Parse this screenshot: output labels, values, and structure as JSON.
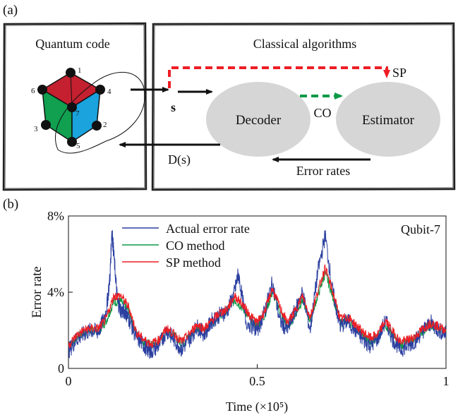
{
  "panel_a": {
    "label": "(a)",
    "quantum_box_title": "Quantum code",
    "classical_box_title": "Classical algorithms",
    "vertex_labels": [
      "1",
      "2",
      "3",
      "4",
      "5",
      "6",
      "7"
    ],
    "syndrome_label": "s",
    "decoder_label": "Decoder",
    "estimator_label": "Estimator",
    "co_label": "CO",
    "sp_label": "SP",
    "decoder_output_label": "D(s)",
    "error_rates_label": "Error rates",
    "colors": {
      "red": "#ee1d24",
      "green": "#0e9a48",
      "blue": "#1c9ad6",
      "ellipse": "#d6d6d6",
      "sp_arrow": "#ee1d24",
      "co_arrow": "#0e9a48"
    }
  },
  "panel_b": {
    "label": "(b)",
    "annotation": "Qubit-7"
  },
  "chart_data": {
    "type": "line",
    "title": "",
    "xlabel": "Time (×10⁵)",
    "ylabel": "Error rate",
    "xlim": [
      0,
      1
    ],
    "ylim": [
      0,
      0.08
    ],
    "x_ticks": [
      "0",
      "0.5",
      "1"
    ],
    "y_ticks": [
      "0",
      "4%",
      "8%"
    ],
    "legend_position": "top-left",
    "series": [
      {
        "name": "Actual error rate",
        "color": "#2b3fa0",
        "x": [
          0,
          0.02,
          0.04,
          0.06,
          0.08,
          0.1,
          0.11,
          0.115,
          0.12,
          0.13,
          0.14,
          0.15,
          0.16,
          0.18,
          0.2,
          0.21,
          0.22,
          0.24,
          0.26,
          0.28,
          0.3,
          0.32,
          0.34,
          0.36,
          0.38,
          0.4,
          0.42,
          0.44,
          0.45,
          0.47,
          0.5,
          0.52,
          0.54,
          0.56,
          0.58,
          0.6,
          0.62,
          0.64,
          0.66,
          0.68,
          0.7,
          0.72,
          0.74,
          0.76,
          0.78,
          0.8,
          0.82,
          0.84,
          0.86,
          0.88,
          0.9,
          0.92,
          0.94,
          0.96,
          0.98,
          1
        ],
        "values": [
          0.009,
          0.015,
          0.018,
          0.02,
          0.019,
          0.03,
          0.048,
          0.073,
          0.06,
          0.035,
          0.03,
          0.03,
          0.026,
          0.016,
          0.012,
          0.01,
          0.009,
          0.012,
          0.02,
          0.015,
          0.01,
          0.015,
          0.022,
          0.018,
          0.025,
          0.028,
          0.03,
          0.04,
          0.05,
          0.025,
          0.02,
          0.03,
          0.045,
          0.025,
          0.02,
          0.03,
          0.04,
          0.02,
          0.05,
          0.07,
          0.04,
          0.022,
          0.025,
          0.02,
          0.015,
          0.012,
          0.016,
          0.025,
          0.015,
          0.01,
          0.012,
          0.015,
          0.02,
          0.024,
          0.02,
          0.018
        ]
      },
      {
        "name": "CO method",
        "color": "#0e9a48",
        "x": [
          0,
          0.02,
          0.04,
          0.06,
          0.08,
          0.1,
          0.12,
          0.14,
          0.16,
          0.18,
          0.2,
          0.22,
          0.24,
          0.26,
          0.28,
          0.3,
          0.32,
          0.34,
          0.36,
          0.38,
          0.4,
          0.42,
          0.44,
          0.46,
          0.48,
          0.5,
          0.52,
          0.54,
          0.56,
          0.58,
          0.6,
          0.62,
          0.64,
          0.66,
          0.68,
          0.7,
          0.72,
          0.74,
          0.76,
          0.78,
          0.8,
          0.82,
          0.84,
          0.86,
          0.88,
          0.9,
          0.92,
          0.94,
          0.96,
          0.98,
          1
        ],
        "values": [
          0.011,
          0.016,
          0.019,
          0.02,
          0.02,
          0.025,
          0.035,
          0.035,
          0.03,
          0.018,
          0.014,
          0.012,
          0.014,
          0.02,
          0.017,
          0.013,
          0.017,
          0.022,
          0.02,
          0.024,
          0.028,
          0.03,
          0.036,
          0.032,
          0.026,
          0.022,
          0.028,
          0.04,
          0.03,
          0.022,
          0.028,
          0.036,
          0.025,
          0.038,
          0.05,
          0.038,
          0.024,
          0.025,
          0.021,
          0.017,
          0.014,
          0.017,
          0.023,
          0.017,
          0.012,
          0.014,
          0.016,
          0.02,
          0.023,
          0.021,
          0.019
        ]
      },
      {
        "name": "SP method",
        "color": "#ee1d24",
        "x": [
          0,
          0.02,
          0.04,
          0.06,
          0.08,
          0.1,
          0.12,
          0.14,
          0.16,
          0.18,
          0.2,
          0.22,
          0.24,
          0.26,
          0.28,
          0.3,
          0.32,
          0.34,
          0.36,
          0.38,
          0.4,
          0.42,
          0.44,
          0.46,
          0.48,
          0.5,
          0.52,
          0.54,
          0.56,
          0.58,
          0.6,
          0.62,
          0.64,
          0.66,
          0.68,
          0.7,
          0.72,
          0.74,
          0.76,
          0.78,
          0.8,
          0.82,
          0.84,
          0.86,
          0.88,
          0.9,
          0.92,
          0.94,
          0.96,
          0.98,
          1
        ],
        "values": [
          0.012,
          0.017,
          0.02,
          0.021,
          0.021,
          0.026,
          0.038,
          0.038,
          0.032,
          0.019,
          0.015,
          0.013,
          0.015,
          0.021,
          0.018,
          0.014,
          0.018,
          0.023,
          0.021,
          0.025,
          0.029,
          0.031,
          0.038,
          0.034,
          0.028,
          0.024,
          0.03,
          0.042,
          0.032,
          0.024,
          0.03,
          0.038,
          0.027,
          0.04,
          0.053,
          0.04,
          0.026,
          0.027,
          0.023,
          0.019,
          0.016,
          0.018,
          0.025,
          0.019,
          0.014,
          0.015,
          0.017,
          0.021,
          0.024,
          0.022,
          0.02
        ]
      }
    ]
  }
}
